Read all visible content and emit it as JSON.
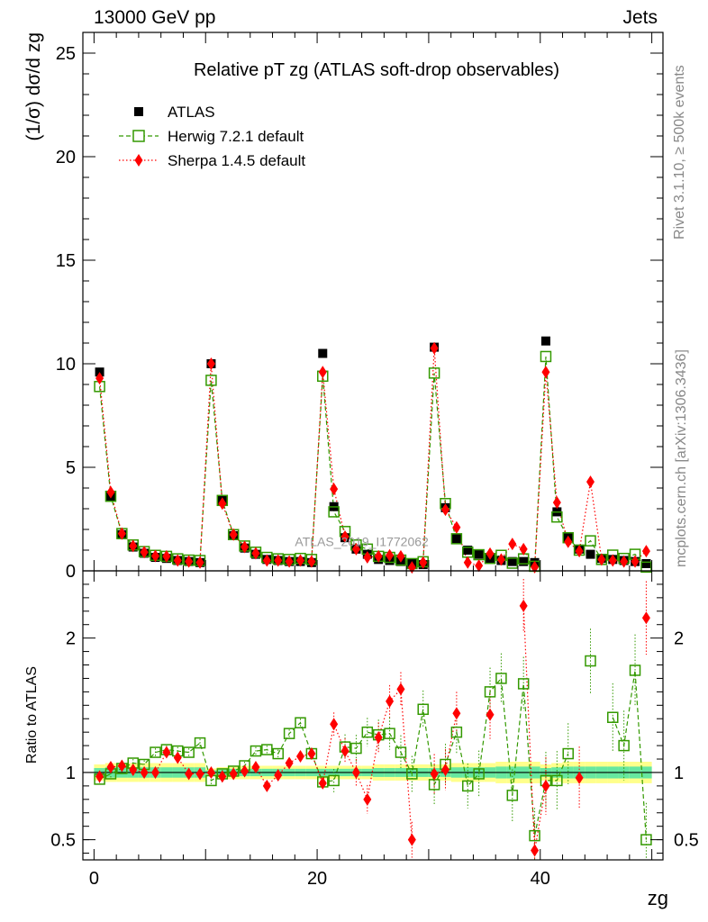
{
  "header": {
    "left": "13000 GeV pp",
    "right": "Jets"
  },
  "side_labels": {
    "rivet": "Rivet 3.1.10, ≥ 500k events",
    "mcplots": "mcplots.cern.ch [arXiv:1306.3436]"
  },
  "chart_data": [
    {
      "type": "scatter",
      "panel": "main",
      "title": "Relative pT zg (ATLAS soft-drop observables)",
      "ylabel": "(1/σ) dσ/d zg",
      "xlabel": "zg",
      "xlim": [
        -1,
        51
      ],
      "ylim": [
        0,
        26
      ],
      "yticks": [
        "0",
        "5",
        "10",
        "15",
        "20",
        "25"
      ],
      "xticks": [
        "0",
        "20",
        "40"
      ],
      "watermark": "ATLAS_2019_I1772062",
      "legend_position": "top-left",
      "x": [
        0.5,
        1.5,
        2.5,
        3.5,
        4.5,
        5.5,
        6.5,
        7.5,
        8.5,
        9.5,
        10.5,
        11.5,
        12.5,
        13.5,
        14.5,
        15.5,
        16.5,
        17.5,
        18.5,
        19.5,
        20.5,
        21.5,
        22.5,
        23.5,
        24.5,
        25.5,
        26.5,
        27.5,
        28.5,
        29.5,
        30.5,
        31.5,
        32.5,
        33.5,
        34.5,
        35.5,
        36.5,
        37.5,
        38.5,
        39.5,
        40.5,
        41.5,
        42.5,
        43.5,
        44.5,
        45.5,
        46.5,
        47.5,
        48.5,
        49.5
      ],
      "series": [
        {
          "name": "ATLAS",
          "marker": "filled-square",
          "color": "#000000",
          "values": [
            9.6,
            3.6,
            1.75,
            1.15,
            0.85,
            0.65,
            0.6,
            0.5,
            0.45,
            0.4,
            10.0,
            3.4,
            1.7,
            1.1,
            0.8,
            0.55,
            0.5,
            0.45,
            0.45,
            0.4,
            10.5,
            3.1,
            1.6,
            1.05,
            0.8,
            0.55,
            0.5,
            0.45,
            0.35,
            0.3,
            10.8,
            3.05,
            1.55,
            1.0,
            0.8,
            0.6,
            0.5,
            0.45,
            0.45,
            0.4,
            11.1,
            2.85,
            1.6,
            1.05,
            0.8,
            0.6,
            0.55,
            0.5,
            0.45,
            0.35
          ]
        },
        {
          "name": "Herwig 7.2.1 default",
          "marker": "open-square",
          "color": "#339900",
          "values": [
            8.9,
            3.6,
            1.8,
            1.25,
            0.93,
            0.75,
            0.7,
            0.58,
            0.52,
            0.5,
            9.2,
            3.4,
            1.75,
            1.2,
            0.9,
            0.65,
            0.58,
            0.55,
            0.6,
            0.55,
            9.4,
            2.85,
            1.9,
            1.25,
            1.05,
            0.7,
            0.65,
            0.52,
            0.35,
            0.44,
            9.55,
            3.25,
            1.55,
            0.9,
            0.78,
            0.6,
            0.75,
            0.37,
            0.58,
            0.22,
            10.35,
            2.6,
            1.6,
            1.0,
            1.45,
            0.55,
            0.76,
            0.6,
            0.8,
            0.18
          ]
        },
        {
          "name": "Sherpa 1.4.5 default",
          "marker": "diamond",
          "color": "#ff0000",
          "values": [
            9.3,
            3.8,
            1.8,
            1.2,
            0.9,
            0.72,
            0.7,
            0.5,
            0.45,
            0.4,
            10.0,
            3.25,
            1.75,
            1.15,
            0.85,
            0.5,
            0.5,
            0.45,
            0.5,
            0.45,
            9.6,
            3.95,
            1.65,
            1.05,
            0.65,
            0.7,
            0.75,
            0.7,
            0.17,
            0.4,
            10.75,
            2.95,
            2.1,
            0.4,
            0.25,
            0.83,
            0.55,
            1.3,
            1.05,
            0.18,
            9.6,
            3.3,
            1.4,
            0.95,
            4.3,
            0.55,
            0.5,
            0.45,
            0.45,
            0.95
          ]
        }
      ]
    },
    {
      "type": "scatter",
      "panel": "ratio",
      "ylabel": "Ratio to ATLAS",
      "xlabel": "zg",
      "xlim": [
        -1,
        51
      ],
      "ylim": [
        0.35,
        2.5
      ],
      "yticks": [
        "0.5",
        "1",
        "2"
      ],
      "xticks": [
        "0",
        "20",
        "40"
      ],
      "x": [
        0.5,
        1.5,
        2.5,
        3.5,
        4.5,
        5.5,
        6.5,
        7.5,
        8.5,
        9.5,
        10.5,
        11.5,
        12.5,
        13.5,
        14.5,
        15.5,
        16.5,
        17.5,
        18.5,
        19.5,
        20.5,
        21.5,
        22.5,
        23.5,
        24.5,
        25.5,
        26.5,
        27.5,
        28.5,
        29.5,
        30.5,
        31.5,
        32.5,
        33.5,
        34.5,
        35.5,
        36.5,
        37.5,
        38.5,
        39.5,
        40.5,
        41.5,
        42.5,
        43.5,
        44.5,
        45.5,
        46.5,
        47.5,
        48.5,
        49.5
      ],
      "band_sizes": [
        0.06,
        0.07,
        0.07,
        0.07,
        0.07,
        0.07,
        0.07,
        0.07,
        0.07,
        0.07,
        0.03,
        0.04,
        0.05,
        0.05,
        0.05,
        0.05,
        0.05,
        0.05,
        0.05,
        0.05,
        0.05,
        0.05,
        0.05,
        0.05,
        0.05,
        0.06,
        0.06,
        0.06,
        0.06,
        0.06,
        0.06,
        0.06,
        0.07,
        0.07,
        0.07,
        0.07,
        0.08,
        0.08,
        0.08,
        0.08,
        0.06,
        0.07,
        0.08,
        0.08,
        0.08,
        0.08,
        0.08,
        0.08,
        0.08,
        0.08
      ],
      "series": [
        {
          "name": "Herwig 7.2.1 default",
          "marker": "open-square",
          "color": "#339900",
          "values": [
            0.95,
            0.99,
            1.03,
            1.07,
            1.06,
            1.15,
            1.17,
            1.16,
            1.15,
            1.22,
            0.94,
            0.99,
            1.01,
            1.05,
            1.16,
            1.17,
            1.14,
            1.29,
            1.37,
            1.14,
            0.93,
            0.94,
            1.19,
            1.18,
            1.3,
            1.28,
            1.29,
            1.15,
            0.99,
            1.47,
            0.91,
            1.06,
            1.3,
            0.9,
            0.99,
            1.6,
            1.7,
            0.83,
            1.66,
            0.53,
            0.94,
            0.94,
            1.14,
            null,
            1.83,
            null,
            1.41,
            1.2,
            1.76,
            0.5
          ]
        },
        {
          "name": "Sherpa 1.4.5 default",
          "marker": "diamond",
          "color": "#ff0000",
          "values": [
            0.97,
            1.04,
            1.05,
            1.02,
            1.0,
            1.0,
            1.15,
            1.11,
            0.99,
            0.99,
            1.0,
            0.97,
            0.99,
            1.01,
            1.04,
            0.9,
            0.98,
            1.07,
            1.12,
            1.14,
            0.92,
            1.36,
            1.16,
            1.0,
            0.8,
            1.26,
            1.53,
            1.62,
            0.5,
            null,
            0.99,
            1.02,
            1.44,
            null,
            null,
            1.43,
            null,
            null,
            2.24,
            0.42,
            0.9,
            null,
            null,
            0.96,
            null,
            null,
            null,
            null,
            null,
            2.15
          ]
        }
      ]
    }
  ]
}
